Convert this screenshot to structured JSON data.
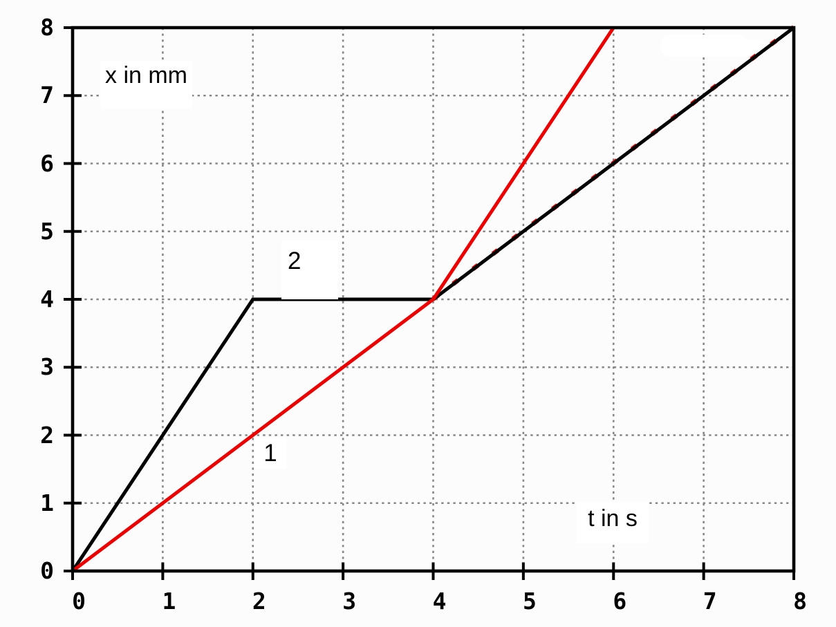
{
  "page": {
    "background": "#fcfcfc"
  },
  "chart_data": {
    "type": "line",
    "title": "",
    "xlabel": "t in s",
    "ylabel": "x in mm",
    "xlim": [
      0,
      8
    ],
    "ylim": [
      0,
      8
    ],
    "xticks": [
      "0",
      "1",
      "2",
      "3",
      "4",
      "5",
      "6",
      "7",
      "8"
    ],
    "yticks": [
      "0",
      "1",
      "2",
      "3",
      "4",
      "5",
      "6",
      "7",
      "8"
    ],
    "grid": true,
    "grid_color": "#878787",
    "axis_color": "#000000",
    "legend": "none",
    "series": [
      {
        "name": "curve-1-dashed-continuation",
        "label": "",
        "color": "#ee0000",
        "style": "dashed",
        "points": [
          [
            4,
            4
          ],
          [
            8,
            8
          ]
        ]
      },
      {
        "name": "curve-2",
        "label": "2",
        "color": "#000000",
        "style": "solid",
        "points": [
          [
            0,
            0
          ],
          [
            2,
            4
          ],
          [
            4,
            4
          ],
          [
            8,
            8
          ]
        ]
      },
      {
        "name": "curve-1",
        "label": "1",
        "color": "#ee0000",
        "style": "solid",
        "points": [
          [
            0,
            0
          ],
          [
            4,
            4
          ],
          [
            6,
            8
          ]
        ]
      }
    ]
  }
}
